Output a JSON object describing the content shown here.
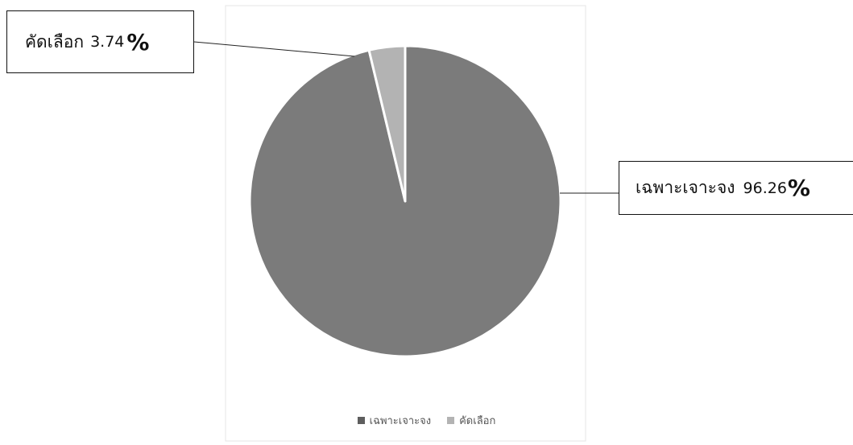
{
  "chart_data": {
    "type": "pie",
    "title": "",
    "slices": [
      {
        "name": "เฉพาะเจาะจง",
        "value": 96.26,
        "color": "#7b7b7b"
      },
      {
        "name": "คัดเลือก",
        "value": 3.74,
        "color": "#b3b3b3"
      }
    ],
    "start_angle_deg": 0,
    "direction": "clockwise",
    "legend_position": "bottom"
  },
  "callouts": {
    "left": {
      "name": "คัดเลือก",
      "number": "3.74",
      "percent_sign": "%"
    },
    "right": {
      "name": "เฉพาะเจาะจง",
      "number": "96.26",
      "percent_sign": "%"
    }
  },
  "legend": [
    {
      "label": "เฉพาะเจาะจง",
      "color": "#5e5e5e"
    },
    {
      "label": "คัดเลือก",
      "color": "#b3b3b3"
    }
  ],
  "colors": {
    "slice_border": "#ffffff",
    "leader_line": "#222222",
    "plot_frame": "#e6e6e6"
  }
}
